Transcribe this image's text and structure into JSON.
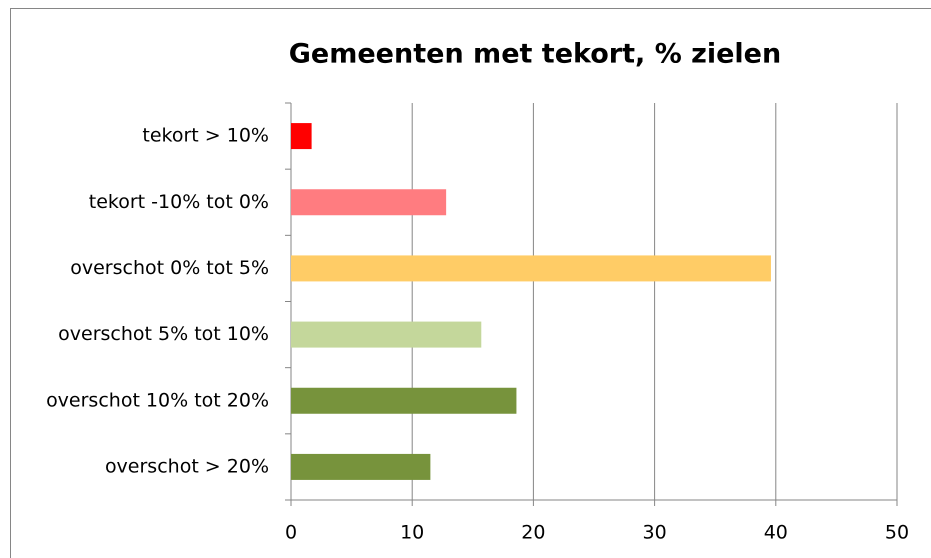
{
  "chart_data": {
    "type": "bar",
    "orientation": "horizontal",
    "title": "Gemeenten met tekort, % zielen",
    "categories": [
      "tekort > 10%",
      "tekort -10% tot 0%",
      "overschot 0% tot 5%",
      "overschot 5% tot 10%",
      "overschot 10% tot 20%",
      "overschot > 20%"
    ],
    "values": [
      1.7,
      12.8,
      39.6,
      15.7,
      18.6,
      11.5
    ],
    "colors": [
      "#ff0000",
      "#ff7c80",
      "#ffcc66",
      "#c4d79b",
      "#77933c",
      "#77933c"
    ],
    "xlim": [
      0,
      50
    ],
    "xticks": [
      0,
      10,
      20,
      30,
      40,
      50
    ],
    "grid": true
  }
}
